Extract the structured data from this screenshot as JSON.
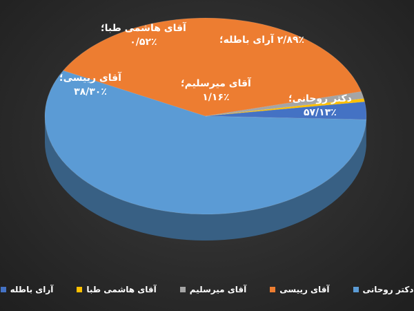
{
  "chart_data": {
    "type": "pie",
    "title": "",
    "categories": [
      "دکتر روحانی",
      "آقای رییسی",
      "آقای میرسلیم",
      "آقای هاشمی طبا",
      "آرای باطله"
    ],
    "values": [
      57.13,
      38.3,
      1.16,
      0.52,
      2.89
    ],
    "colors": [
      "#5B9BD5",
      "#ED7D31",
      "#A5A5A5",
      "#FFC000",
      "#4472C4"
    ],
    "data_labels": [
      {
        "name": "دکتر روحانی؛",
        "value": "۵۷/۱۳٪"
      },
      {
        "name": "آقای رییسی؛",
        "value": "۳۸/۳۰٪"
      },
      {
        "name": "آقای میرسلیم؛",
        "value": "۱/۱۶٪"
      },
      {
        "name": "آقای هاشمی طبا؛",
        "value": "۰/۵۲٪"
      },
      {
        "name": "آرای باطله؛",
        "value": "۲/۸۹٪"
      }
    ],
    "legend_position": "bottom",
    "style": "3d"
  }
}
